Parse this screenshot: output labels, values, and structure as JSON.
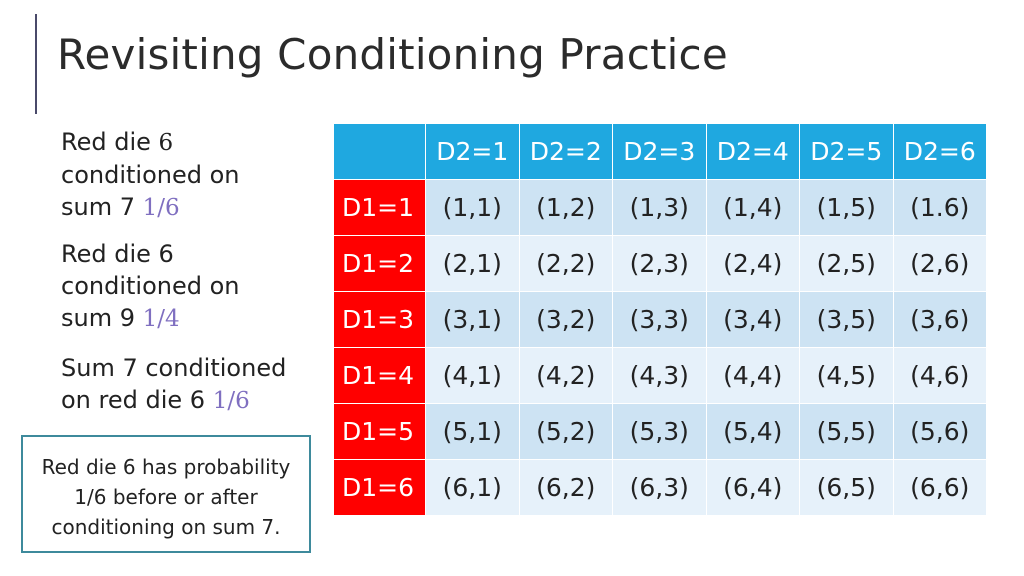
{
  "slide": {
    "title": "Revisiting Conditioning Practice"
  },
  "bullets": [
    {
      "lines": [
        "Red die ",
        "6",
        "conditioned on",
        "sum 7 "
      ],
      "fraction": "1/6"
    },
    {
      "lines": [
        "Red die 6",
        "conditioned on",
        "sum 9 "
      ],
      "fraction": "1/4"
    },
    {
      "lines": [
        "Sum 7 conditioned",
        "on red die 6 "
      ],
      "fraction": "1/6"
    }
  ],
  "note": {
    "line1": "Red die 6 has probability",
    "line2": "1/6 before or after",
    "line3": "conditioning on sum 7."
  },
  "table": {
    "columns": [
      "D2=1",
      "D2=2",
      "D2=3",
      "D2=4",
      "D2=5",
      "D2=6"
    ],
    "rows": [
      {
        "label": "D1=1",
        "cells": [
          "(1,1)",
          "(1,2)",
          "(1,3)",
          "(1,4)",
          "(1,5)",
          "(1.6)"
        ]
      },
      {
        "label": "D1=2",
        "cells": [
          "(2,1)",
          "(2,2)",
          "(2,3)",
          "(2,4)",
          "(2,5)",
          "(2,6)"
        ]
      },
      {
        "label": "D1=3",
        "cells": [
          "(3,1)",
          "(3,2)",
          "(3,3)",
          "(3,4)",
          "(3,5)",
          "(3,6)"
        ]
      },
      {
        "label": "D1=4",
        "cells": [
          "(4,1)",
          "(4,2)",
          "(4,3)",
          "(4,4)",
          "(4,5)",
          "(4,6)"
        ]
      },
      {
        "label": "D1=5",
        "cells": [
          "(5,1)",
          "(5,2)",
          "(5,3)",
          "(5,4)",
          "(5,5)",
          "(5,6)"
        ]
      },
      {
        "label": "D1=6",
        "cells": [
          "(6,1)",
          "(6,2)",
          "(6,3)",
          "(6,4)",
          "(6,5)",
          "(6,6)"
        ]
      }
    ]
  },
  "colors": {
    "header_bg": "#1fa8e0",
    "row_header_bg": "#ff0000",
    "fraction_text": "#7f6fc0",
    "note_border": "#3e8a9c"
  }
}
